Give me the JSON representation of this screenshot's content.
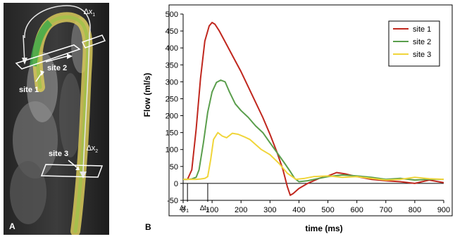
{
  "panel_a": {
    "label": "A",
    "site_labels": [
      "site 1",
      "site 2",
      "site 3"
    ],
    "delta_labels": [
      {
        "base": "∆x",
        "sub": "1"
      },
      {
        "base": "∆x",
        "sub": "2"
      }
    ]
  },
  "panel_b": {
    "label": "B"
  },
  "chart_data": {
    "type": "line",
    "xlabel": "time (ms)",
    "ylabel": "Flow (ml/s)",
    "xlim": [
      0,
      900
    ],
    "ylim": [
      -50,
      500
    ],
    "xticks": [
      0,
      100,
      200,
      300,
      400,
      500,
      600,
      700,
      800,
      900
    ],
    "yticks": [
      -50,
      0,
      50,
      100,
      150,
      200,
      250,
      300,
      350,
      400,
      450,
      500
    ],
    "grid": false,
    "legend_position": "top-right",
    "annotations": [
      {
        "base": "∆t",
        "sub": "1",
        "x": 15
      },
      {
        "base": "∆t",
        "sub": "2",
        "x": 85
      }
    ],
    "series": [
      {
        "name": "site 1",
        "color": "#c0271e",
        "x": [
          0,
          15,
          30,
          45,
          60,
          75,
          90,
          100,
          110,
          125,
          150,
          175,
          200,
          225,
          250,
          275,
          300,
          325,
          345,
          360,
          370,
          380,
          400,
          430,
          470,
          500,
          530,
          560,
          600,
          650,
          700,
          750,
          800,
          850,
          900
        ],
        "y": [
          12,
          12,
          40,
          160,
          310,
          420,
          465,
          475,
          470,
          450,
          410,
          370,
          330,
          285,
          240,
          195,
          145,
          90,
          40,
          -10,
          -35,
          -30,
          -15,
          0,
          15,
          22,
          32,
          28,
          20,
          12,
          8,
          5,
          0,
          10,
          2
        ]
      },
      {
        "name": "site 2",
        "color": "#5a9e4c",
        "x": [
          0,
          15,
          30,
          45,
          55,
          70,
          85,
          100,
          115,
          130,
          145,
          160,
          180,
          200,
          225,
          250,
          275,
          300,
          325,
          350,
          370,
          385,
          400,
          430,
          470,
          500,
          550,
          600,
          650,
          700,
          750,
          800,
          850,
          900
        ],
        "y": [
          12,
          12,
          13,
          18,
          40,
          120,
          210,
          270,
          298,
          305,
          300,
          270,
          235,
          215,
          195,
          170,
          150,
          120,
          90,
          60,
          35,
          15,
          5,
          8,
          15,
          20,
          25,
          22,
          18,
          12,
          15,
          10,
          12,
          12
        ]
      },
      {
        "name": "site 3",
        "color": "#f0d53a",
        "x": [
          0,
          15,
          30,
          45,
          60,
          75,
          85,
          95,
          105,
          120,
          135,
          150,
          170,
          190,
          210,
          230,
          250,
          270,
          300,
          330,
          360,
          390,
          420,
          450,
          500,
          550,
          600,
          650,
          700,
          750,
          800,
          850,
          900
        ],
        "y": [
          12,
          12,
          12,
          12,
          13,
          15,
          20,
          70,
          130,
          150,
          140,
          135,
          148,
          145,
          138,
          130,
          115,
          100,
          85,
          60,
          30,
          12,
          15,
          20,
          22,
          18,
          20,
          15,
          10,
          12,
          18,
          14,
          12
        ]
      }
    ]
  }
}
